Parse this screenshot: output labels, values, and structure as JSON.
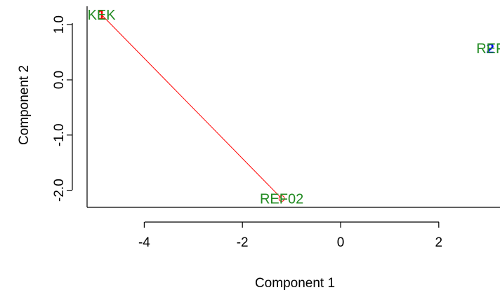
{
  "chart_data": {
    "type": "scatter",
    "xlabel": "Component 1",
    "ylabel": "Component 2",
    "xlim": [
      -5.2,
      3.1
    ],
    "ylim": [
      -2.3,
      1.3
    ],
    "x_ticks": [
      "-4",
      "-2",
      "0",
      "2"
    ],
    "y_ticks": [
      "-2.0",
      "-1.0",
      "0.0",
      "1.0"
    ],
    "x_tick_values": [
      -4,
      -2,
      0,
      2
    ],
    "y_tick_values": [
      -2.0,
      -1.0,
      0.0,
      1.0
    ],
    "points": [
      {
        "label": "KEK",
        "marker": "1",
        "marker_color": "#ff0000",
        "label_color": "#228b22",
        "x": -4.87,
        "y": 1.18
      },
      {
        "label": "REF02",
        "marker": "",
        "marker_color": "#ff0000",
        "label_color": "#228b22",
        "x": -1.2,
        "y": -2.15
      },
      {
        "label": "REF",
        "marker": "2",
        "marker_color": "#0000ff",
        "label_color": "#228b22",
        "x": 3.05,
        "y": 0.57
      }
    ],
    "segments": [
      {
        "from": [
          -4.87,
          1.18
        ],
        "to": [
          -1.2,
          -2.15
        ],
        "color": "#ff0000"
      }
    ]
  }
}
